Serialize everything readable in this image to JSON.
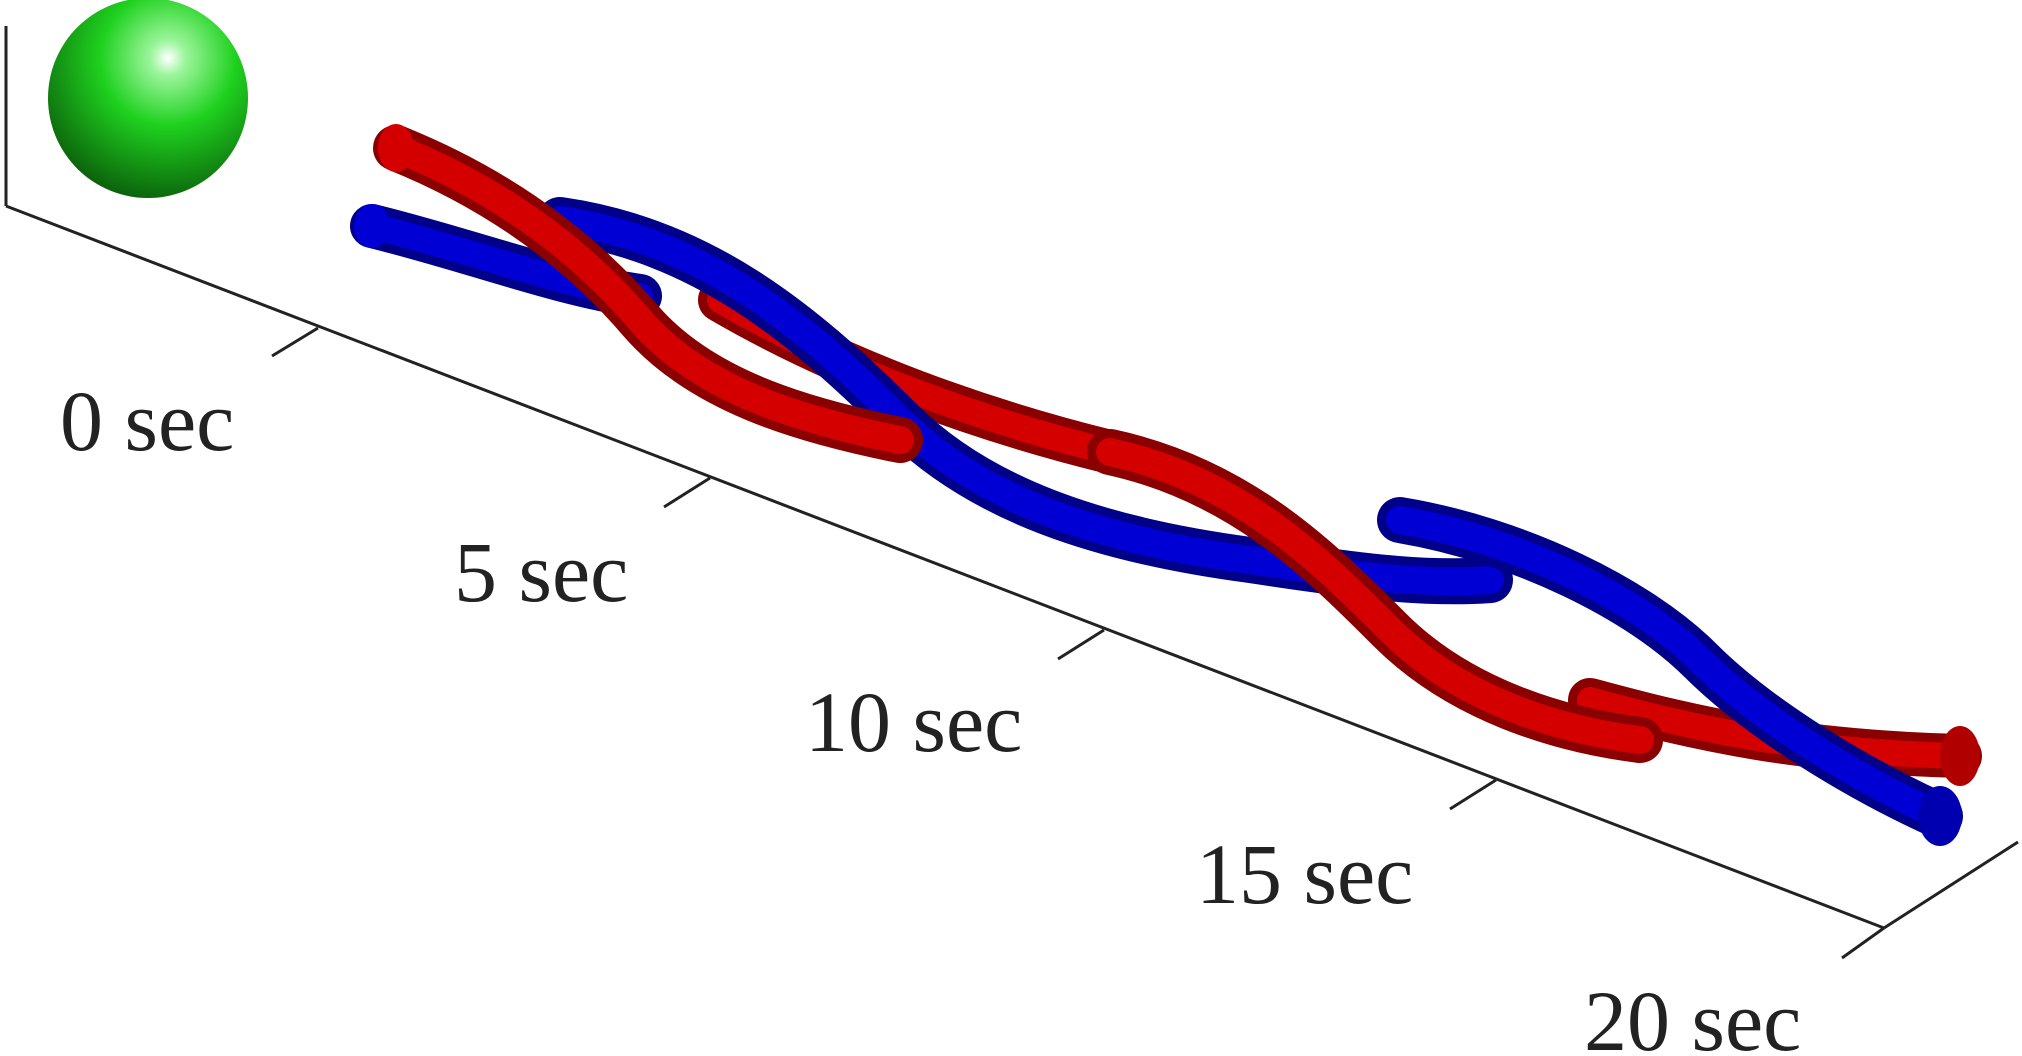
{
  "time_axis": {
    "tick_labels": [
      "0 sec",
      "5 sec",
      "10 sec",
      "15 sec",
      "20 sec"
    ],
    "axis_color": "#222222"
  },
  "objects": {
    "sphere_color": "#1fd11f",
    "strand_a_color": "#d40000",
    "strand_b_color": "#0000d4"
  }
}
